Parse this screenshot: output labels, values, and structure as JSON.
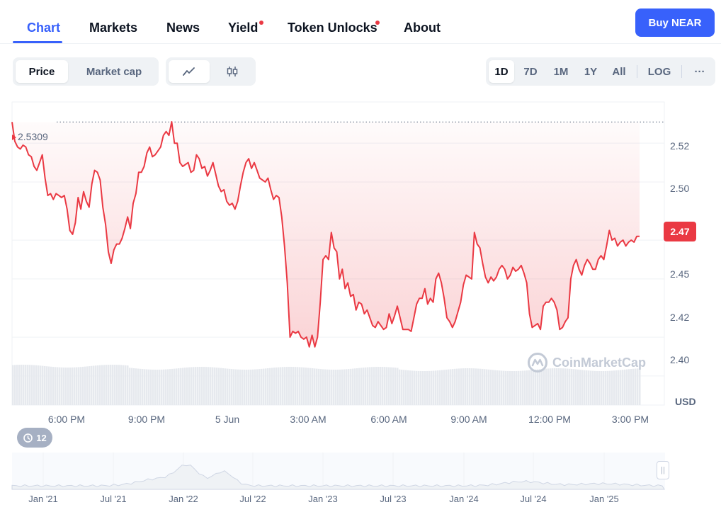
{
  "tabs": [
    {
      "label": "Chart",
      "active": true
    },
    {
      "label": "Markets"
    },
    {
      "label": "News"
    },
    {
      "label": "Yield",
      "dot": true
    },
    {
      "label": "Token Unlocks",
      "dot": true
    },
    {
      "label": "About"
    }
  ],
  "buy_button": "Buy NEAR",
  "toggle": {
    "price": "Price",
    "market_cap": "Market cap",
    "selected": "Price"
  },
  "chart_type": {
    "selected": "line"
  },
  "ranges": [
    "1D",
    "7D",
    "1M",
    "1Y",
    "All",
    "LOG"
  ],
  "selected_range": "1D",
  "more_label": "···",
  "open_price_label": "2.5309",
  "current_price": "2.47",
  "currency": "USD",
  "watermark": "CoinMarketCap",
  "events_count": "12",
  "colors": {
    "accent": "#3861fb",
    "down": "#ea3943",
    "up": "#16c784"
  },
  "chart_data": {
    "type": "line",
    "title": "",
    "ylabel": "USD",
    "y_ticks": [
      "2.52",
      "2.50",
      "2.47",
      "2.45",
      "2.42",
      "2.40"
    ],
    "x_ticks": [
      "6:00 PM",
      "9:00 PM",
      "5 Jun",
      "3:00 AM",
      "6:00 AM",
      "9:00 AM",
      "12:00 PM",
      "3:00 PM"
    ],
    "ylim": [
      2.385,
      2.5405
    ],
    "reference_line": 2.5309,
    "series": [
      {
        "values": [
          2.5309,
          2.521,
          2.518,
          2.517,
          2.519,
          2.518,
          2.514,
          2.513,
          2.508,
          2.506,
          2.51,
          2.514,
          2.502,
          2.493,
          2.494,
          2.491,
          2.494,
          2.493,
          2.492,
          2.493,
          2.486,
          2.475,
          2.473,
          2.479,
          2.492,
          2.486,
          2.495,
          2.49,
          2.487,
          2.499,
          2.506,
          2.505,
          2.501,
          2.487,
          2.478,
          2.464,
          2.458,
          2.465,
          2.468,
          2.468,
          2.471,
          2.476,
          2.482,
          2.476,
          2.489,
          2.494,
          2.505,
          2.505,
          2.508,
          2.515,
          2.518,
          2.513,
          2.514,
          2.516,
          2.518,
          2.524,
          2.526,
          2.524,
          2.531,
          2.52,
          2.52,
          2.51,
          2.508,
          2.509,
          2.51,
          2.505,
          2.506,
          2.514,
          2.512,
          2.507,
          2.508,
          2.503,
          2.506,
          2.51,
          2.504,
          2.498,
          2.495,
          2.496,
          2.49,
          2.488,
          2.489,
          2.486,
          2.49,
          2.498,
          2.505,
          2.51,
          2.512,
          2.507,
          2.51,
          2.506,
          2.502,
          2.501,
          2.5,
          2.502,
          2.496,
          2.491,
          2.493,
          2.492,
          2.482,
          2.467,
          2.448,
          2.42,
          2.423,
          2.422,
          2.423,
          2.42,
          2.419,
          2.42,
          2.415,
          2.421,
          2.415,
          2.42,
          2.438,
          2.46,
          2.462,
          2.46,
          2.474,
          2.466,
          2.464,
          2.45,
          2.455,
          2.445,
          2.448,
          2.441,
          2.442,
          2.434,
          2.438,
          2.437,
          2.432,
          2.434,
          2.43,
          2.426,
          2.425,
          2.428,
          2.426,
          2.424,
          2.425,
          2.432,
          2.427,
          2.431,
          2.436,
          2.43,
          2.424,
          2.424,
          2.424,
          2.423,
          2.43,
          2.437,
          2.44,
          2.44,
          2.445,
          2.437,
          2.44,
          2.438,
          2.45,
          2.453,
          2.448,
          2.44,
          2.43,
          2.428,
          2.425,
          2.428,
          2.433,
          2.438,
          2.447,
          2.452,
          2.451,
          2.45,
          2.474,
          2.468,
          2.466,
          2.458,
          2.451,
          2.448,
          2.451,
          2.449,
          2.451,
          2.455,
          2.457,
          2.455,
          2.45,
          2.452,
          2.456,
          2.454,
          2.455,
          2.457,
          2.453,
          2.448,
          2.432,
          2.425,
          2.426,
          2.427,
          2.424,
          2.436,
          2.438,
          2.438,
          2.44,
          2.438,
          2.434,
          2.424,
          2.425,
          2.428,
          2.43,
          2.45,
          2.457,
          2.46,
          2.455,
          2.452,
          2.457,
          2.46,
          2.458,
          2.455,
          2.455,
          2.46,
          2.462,
          2.46,
          2.467,
          2.475,
          2.47,
          2.471,
          2.467,
          2.469,
          2.47,
          2.467,
          2.469,
          2.47,
          2.469,
          2.472,
          2.472
        ]
      }
    ]
  },
  "navigator": {
    "x_ticks": [
      "Jan '21",
      "Jul '21",
      "Jan '22",
      "Jul '22",
      "Jan '23",
      "Jul '23",
      "Jan '24",
      "Jul '24",
      "Jan '25"
    ]
  }
}
